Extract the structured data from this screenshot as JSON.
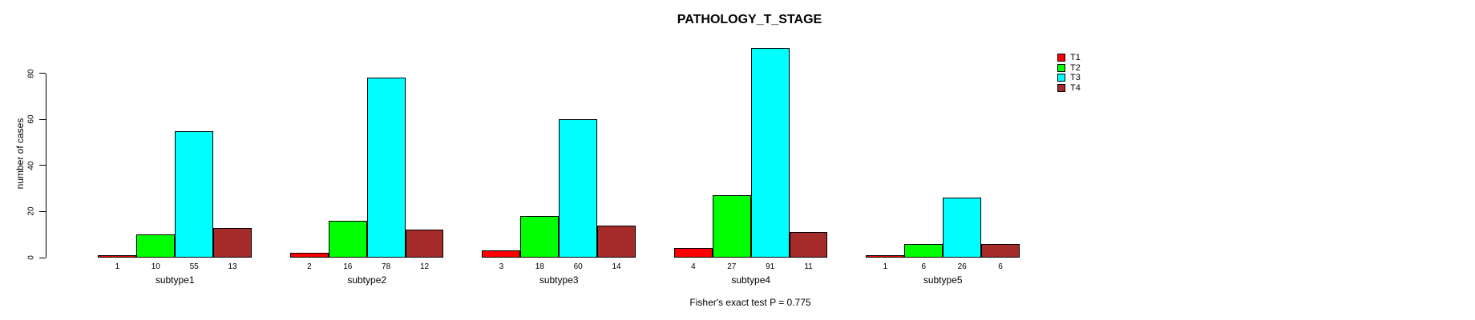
{
  "chart_data": {
    "type": "bar",
    "title": "PATHOLOGY_T_STAGE",
    "ylabel": "number of cases",
    "xlabel": "",
    "annotation": "Fisher's exact test P = 0.775",
    "categories": [
      "subtype1",
      "subtype2",
      "subtype3",
      "subtype4",
      "subtype5"
    ],
    "series": [
      {
        "name": "T1",
        "color": "#FF0000",
        "values": [
          1,
          2,
          3,
          4,
          1
        ]
      },
      {
        "name": "T2",
        "color": "#00FF00",
        "values": [
          10,
          16,
          18,
          27,
          6
        ]
      },
      {
        "name": "T3",
        "color": "#00FFFF",
        "values": [
          55,
          78,
          60,
          91,
          26
        ]
      },
      {
        "name": "T4",
        "color": "#A52A2A",
        "values": [
          13,
          12,
          14,
          11,
          6
        ]
      }
    ],
    "yticks": [
      0,
      20,
      40,
      60,
      80
    ],
    "ylim": [
      0,
      91
    ],
    "grid": false,
    "bar_value_labels": true,
    "legend_position": "top-right",
    "axis_color": "#000000",
    "background_color": "#FFFFFF"
  }
}
